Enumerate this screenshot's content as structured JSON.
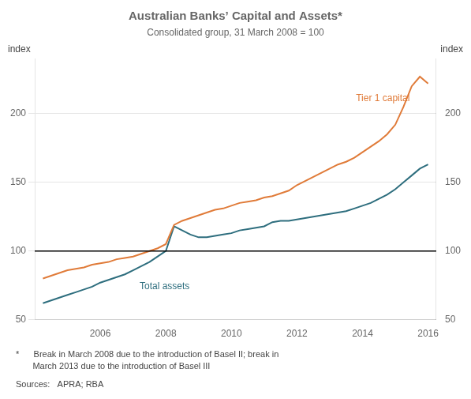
{
  "chart_data": {
    "type": "line",
    "title": "Australian Banks’ Capital and Assets*",
    "subtitle": "Consolidated group, 31 March 2008 = 100",
    "y_label": "index",
    "y2_label": "index",
    "x": [
      2004.25,
      2004.5,
      2004.75,
      2005.0,
      2005.25,
      2005.5,
      2005.75,
      2006.0,
      2006.25,
      2006.5,
      2006.75,
      2007.0,
      2007.25,
      2007.5,
      2007.75,
      2008.0,
      2008.25,
      2008.5,
      2008.75,
      2009.0,
      2009.25,
      2009.5,
      2009.75,
      2010.0,
      2010.25,
      2010.5,
      2010.75,
      2011.0,
      2011.25,
      2011.5,
      2011.75,
      2012.0,
      2012.25,
      2012.5,
      2012.75,
      2013.0,
      2013.25,
      2013.5,
      2013.75,
      2014.0,
      2014.25,
      2014.5,
      2014.75,
      2015.0,
      2015.25,
      2015.5,
      2015.75,
      2016.0
    ],
    "series": [
      {
        "name": "Tier 1 capital",
        "color": "#e07b39",
        "values": [
          80,
          82,
          84,
          86,
          87,
          88,
          90,
          91,
          92,
          94,
          95,
          96,
          98,
          100,
          102,
          105,
          119,
          122,
          124,
          126,
          128,
          130,
          131,
          133,
          135,
          136,
          137,
          139,
          140,
          142,
          144,
          148,
          151,
          154,
          157,
          160,
          163,
          165,
          168,
          172,
          176,
          180,
          185,
          192,
          205,
          220,
          227,
          222
        ]
      },
      {
        "name": "Total assets",
        "color": "#2e6e7e",
        "values": [
          62,
          64,
          66,
          68,
          70,
          72,
          74,
          77,
          79,
          81,
          83,
          86,
          89,
          92,
          96,
          100,
          118,
          115,
          112,
          110,
          110,
          111,
          112,
          113,
          115,
          116,
          117,
          118,
          121,
          122,
          122,
          123,
          124,
          125,
          126,
          127,
          128,
          129,
          131,
          133,
          135,
          138,
          141,
          145,
          150,
          155,
          160,
          163
        ]
      }
    ],
    "annotations": [
      {
        "text": "Tier 1 capital",
        "x": 2013.8,
        "y": 211,
        "color": "#e07b39"
      },
      {
        "text": "Total assets",
        "x": 2007.2,
        "y": 74,
        "color": "#2e6e7e"
      }
    ],
    "hlines": [
      {
        "y": 100,
        "color": "#000000"
      }
    ],
    "xlim": [
      2004.0,
      2016.25
    ],
    "xticks": [
      2006,
      2008,
      2010,
      2012,
      2014,
      2016
    ],
    "ylim": [
      50,
      240
    ],
    "yticks": [
      50,
      100,
      150,
      200
    ],
    "y2lim": [
      50,
      240
    ],
    "y2ticks": [
      50,
      100,
      150,
      200
    ],
    "grid": true,
    "legend": false,
    "notes": [
      "*      Break in March 2008 due to the introduction of Basel II; break in",
      "       March 2013 due to the introduction of Basel III",
      "Sources:   APRA; RBA"
    ]
  }
}
